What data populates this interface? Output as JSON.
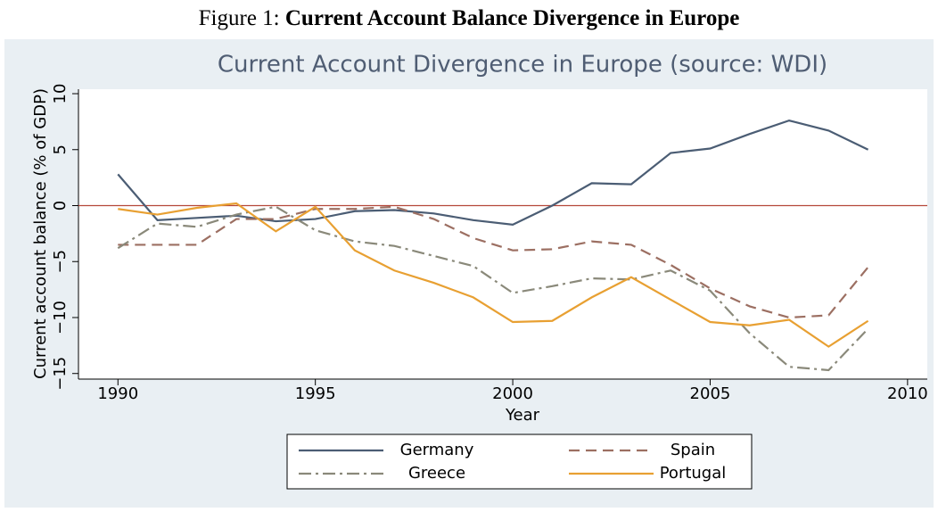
{
  "caption_label": "Figure 1:",
  "caption": "Current Account Balance Divergence in Europe",
  "chart_data": {
    "type": "line",
    "title": "Current Account Divergence in Europe (source: WDI)",
    "x_label": "Year",
    "y_label": "Current account balance (% of GDP)",
    "x": [
      1990,
      1991,
      1992,
      1993,
      1994,
      1995,
      1996,
      1997,
      1998,
      1999,
      2000,
      2001,
      2002,
      2003,
      2004,
      2005,
      2006,
      2007,
      2008,
      2009
    ],
    "series": [
      {
        "name": "Germany",
        "color": "#4b5d74",
        "dash": "solid",
        "values": [
          2.8,
          -1.3,
          -1.1,
          -0.9,
          -1.4,
          -1.2,
          -0.5,
          -0.4,
          -0.7,
          -1.3,
          -1.7,
          0.0,
          2.0,
          1.9,
          4.7,
          5.1,
          6.4,
          7.6,
          6.7,
          5.0
        ]
      },
      {
        "name": "Spain",
        "color": "#9c6f62",
        "dash": "dashed",
        "values": [
          -3.5,
          -3.5,
          -3.5,
          -1.2,
          -1.2,
          -0.3,
          -0.3,
          -0.1,
          -1.2,
          -2.9,
          -4.0,
          -3.9,
          -3.2,
          -3.5,
          -5.3,
          -7.4,
          -9.0,
          -10.0,
          -9.8,
          -5.5
        ]
      },
      {
        "name": "Greece",
        "color": "#8a897a",
        "dash": "dashdot",
        "values": [
          -3.8,
          -1.6,
          -1.9,
          -0.8,
          -0.1,
          -2.2,
          -3.2,
          -3.6,
          -4.5,
          -5.4,
          -7.8,
          -7.2,
          -6.5,
          -6.6,
          -5.8,
          -7.6,
          -11.4,
          -14.4,
          -14.7,
          -11.0
        ]
      },
      {
        "name": "Portugal",
        "color": "#e8a032",
        "dash": "solid",
        "values": [
          -0.3,
          -0.8,
          -0.2,
          0.2,
          -2.3,
          -0.1,
          -4.0,
          -5.8,
          -6.9,
          -8.2,
          -10.4,
          -10.3,
          -8.2,
          -6.4,
          -8.4,
          -10.4,
          -10.7,
          -10.2,
          -12.6,
          -10.3
        ]
      }
    ],
    "xlim": [
      1989,
      2010.5
    ],
    "xticks": [
      1990,
      1995,
      2000,
      2005,
      2010
    ],
    "ylim": [
      -15.5,
      10.4
    ],
    "yticks": [
      {
        "value": -15,
        "label": "−15"
      },
      {
        "value": -10,
        "label": "−10"
      },
      {
        "value": -5,
        "label": "−5"
      },
      0,
      5,
      10
    ],
    "reference_line": 0,
    "reference_color": "#b5473a",
    "grid": false,
    "legend_position": "bottom"
  }
}
